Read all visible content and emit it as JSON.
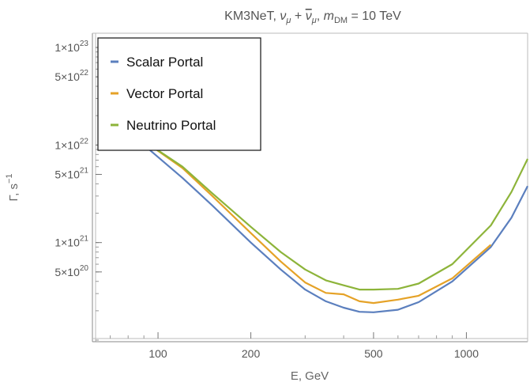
{
  "chart_data": {
    "type": "line",
    "title": {
      "prefix": "KM3NeT, ",
      "nu": "ν",
      "mu": "μ",
      "plus": " + ",
      "mdm_m": "m",
      "mdm_sub": "DM",
      "suffix": " = 10 TeV"
    },
    "xlabel": "E, GeV",
    "ylabel": {
      "main": "Γ, s",
      "sup": "−1"
    },
    "x_scale": "log",
    "y_scale": "log",
    "xlim": [
      62,
      1580
    ],
    "ylim": [
      1e+20,
      1.4e+23
    ],
    "x_ticks": [
      {
        "value": 100,
        "label": "100"
      },
      {
        "value": 200,
        "label": "200"
      },
      {
        "value": 500,
        "label": "500"
      },
      {
        "value": 1000,
        "label": "1000"
      }
    ],
    "y_ticks": [
      {
        "value": 1e+23,
        "mant": "1×10",
        "exp": "23"
      },
      {
        "value": 5e+22,
        "mant": "5×10",
        "exp": "22"
      },
      {
        "value": 1e+22,
        "mant": "1×10",
        "exp": "22"
      },
      {
        "value": 5e+21,
        "mant": "5×10",
        "exp": "21"
      },
      {
        "value": 1e+21,
        "mant": "1×10",
        "exp": "21"
      },
      {
        "value": 5e+20,
        "mant": "5×10",
        "exp": "20"
      }
    ],
    "legend_position": "top-left",
    "series": [
      {
        "name": "Scalar Portal",
        "color": "#5b7fbe",
        "x": [
          90,
          120,
          150,
          200,
          250,
          300,
          350,
          400,
          450,
          500,
          600,
          700,
          900,
          1200,
          1400,
          1580
        ],
        "y": [
          1e+22,
          4.6e+21,
          2.4e+21,
          1e+21,
          5.3e+20,
          3.3e+20,
          2.5e+20,
          2.15e+20,
          1.95e+20,
          1.93e+20,
          2.05e+20,
          2.45e+20,
          4e+20,
          9e+20,
          1.8e+21,
          3.8e+21
        ]
      },
      {
        "name": "Vector Portal",
        "color": "#e5a227",
        "x": [
          92,
          120,
          150,
          200,
          250,
          300,
          350,
          400,
          450,
          500,
          600,
          700,
          900,
          1200
        ],
        "y": [
          1.05e+22,
          5.8e+21,
          3e+21,
          1.25e+21,
          6.4e+20,
          3.9e+20,
          3.05e+20,
          2.95e+20,
          2.5e+20,
          2.4e+20,
          2.6e+20,
          2.85e+20,
          4.3e+20,
          9.5e+20
        ]
      },
      {
        "name": "Neutrino Portal",
        "color": "#8db43a",
        "x": [
          92,
          120,
          150,
          200,
          250,
          300,
          350,
          400,
          450,
          500,
          600,
          700,
          900,
          1200,
          1400,
          1580
        ],
        "y": [
          1.05e+22,
          6e+21,
          3.2e+21,
          1.45e+21,
          8e+20,
          5.3e+20,
          4.1e+20,
          3.65e+20,
          3.3e+20,
          3.3e+20,
          3.35e+20,
          3.8e+20,
          6e+20,
          1.5e+21,
          3.3e+21,
          7.2e+21
        ]
      }
    ]
  }
}
